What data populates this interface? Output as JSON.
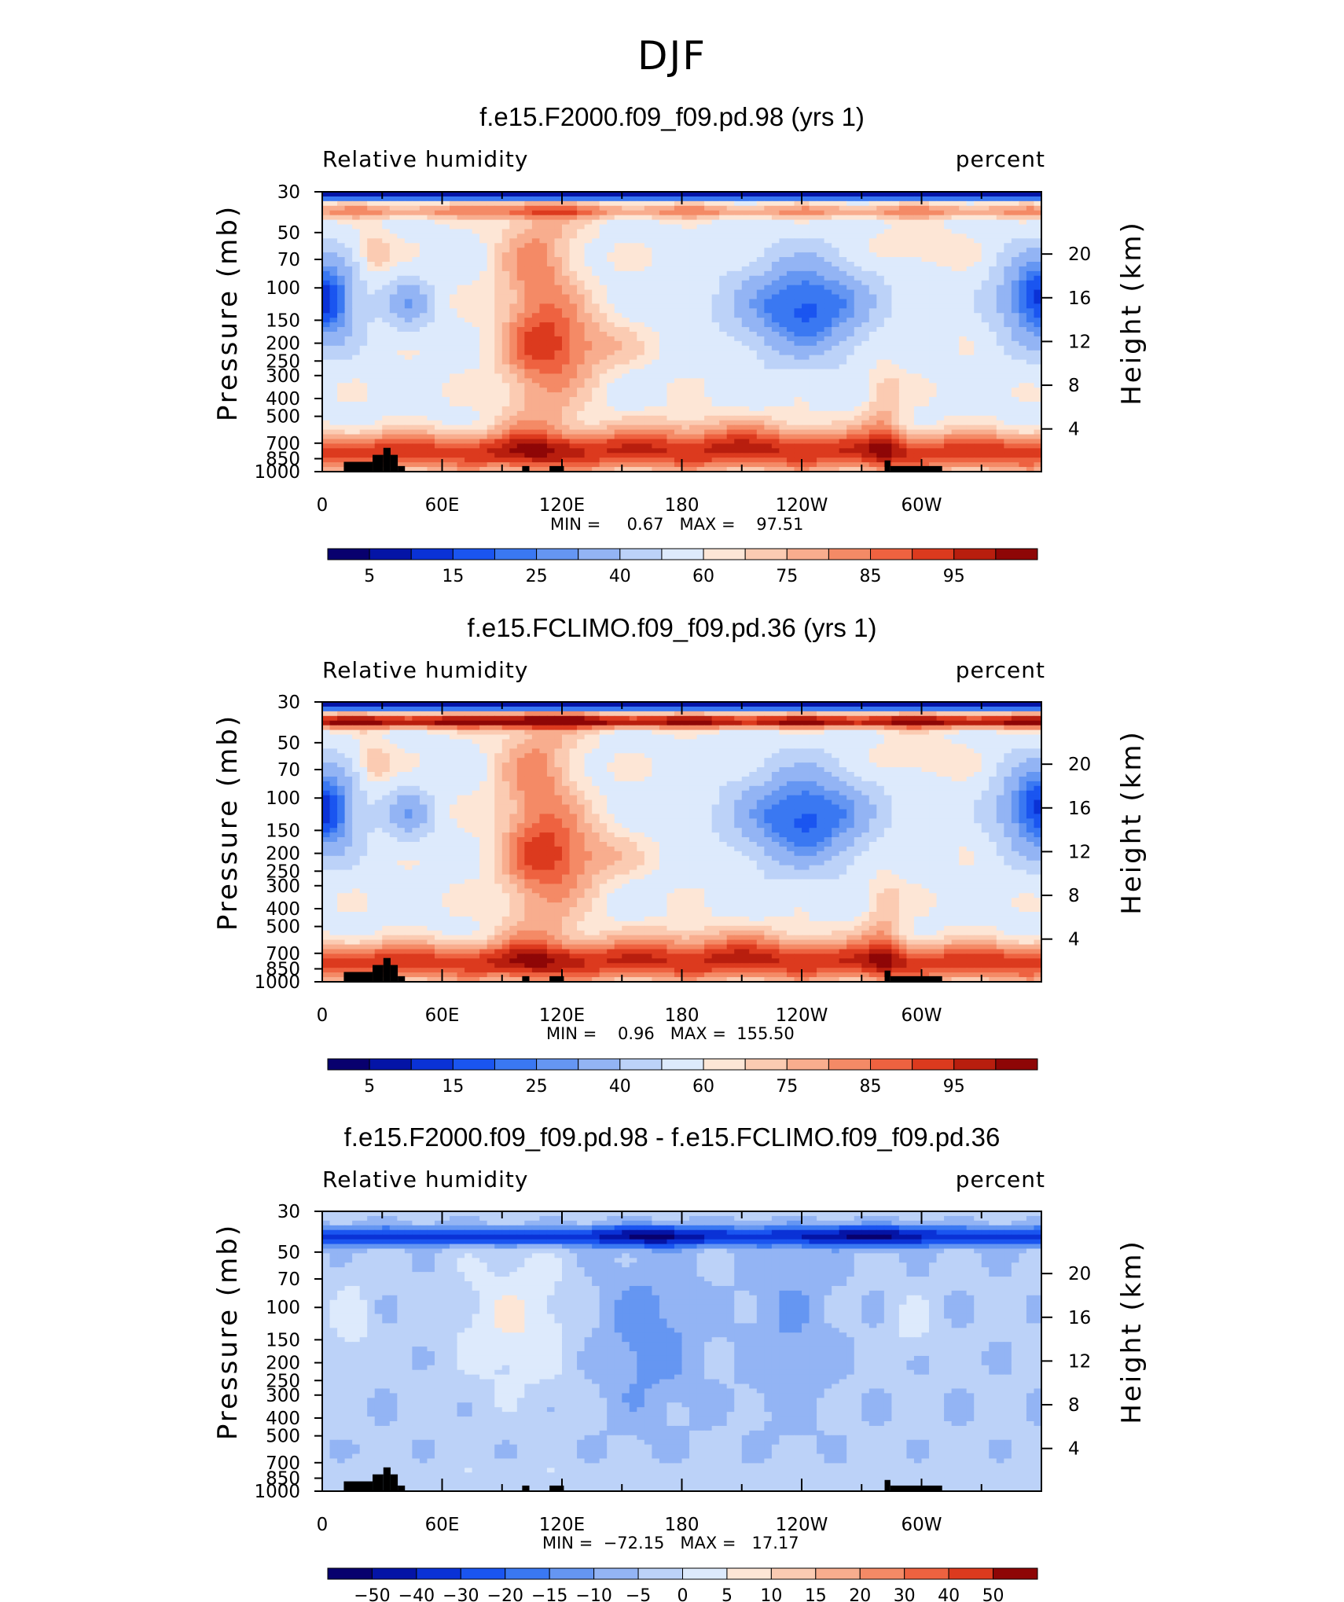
{
  "suptitle": "DJF",
  "colors": {
    "scale": [
      "#08006e",
      "#0414a6",
      "#0a32d6",
      "#1a55f0",
      "#3a78f2",
      "#6596f2",
      "#93b4f4",
      "#bcd2f8",
      "#ddeafc",
      "#fde6d6",
      "#fbcbb2",
      "#f8ad8e",
      "#f48a66",
      "#ee6240",
      "#dc3a1e",
      "#b81e0e",
      "#8e0606"
    ],
    "topo": "#000000"
  },
  "chart_data": [
    {
      "type": "heatmap",
      "title": "f.e15.F2000.f09_f09.pd.98 (yrs 1)",
      "left_label": "Relative humidity",
      "right_label": "percent",
      "ylabel": "Pressure (mb)",
      "ylabel_right": "Height (km)",
      "x_ticks": [
        "0",
        "60E",
        "120E",
        "180",
        "120W",
        "60W"
      ],
      "y_ticks": [
        "30",
        "50",
        "70",
        "100",
        "150",
        "200",
        "250",
        "300",
        "400",
        "500",
        "700",
        "850",
        "1000"
      ],
      "y_right_ticks": [
        "20",
        "16",
        "12",
        "8",
        "4"
      ],
      "stats": "MIN =     0.67   MAX =    97.51",
      "min": 0.67,
      "max": 97.51,
      "colorbar_labels": [
        "5",
        "15",
        "25",
        "40",
        "60",
        "75",
        "85",
        "95"
      ],
      "field": "full"
    },
    {
      "type": "heatmap",
      "title": "f.e15.FCLIMO.f09_f09.pd.36 (yrs 1)",
      "left_label": "Relative humidity",
      "right_label": "percent",
      "ylabel": "Pressure (mb)",
      "ylabel_right": "Height (km)",
      "x_ticks": [
        "0",
        "60E",
        "120E",
        "180",
        "120W",
        "60W"
      ],
      "y_ticks": [
        "30",
        "50",
        "70",
        "100",
        "150",
        "200",
        "250",
        "300",
        "400",
        "500",
        "700",
        "850",
        "1000"
      ],
      "y_right_ticks": [
        "20",
        "16",
        "12",
        "8",
        "4"
      ],
      "stats": "MIN =    0.96   MAX =  155.50",
      "min": 0.96,
      "max": 155.5,
      "colorbar_labels": [
        "5",
        "15",
        "25",
        "40",
        "60",
        "75",
        "85",
        "95"
      ],
      "field": "full"
    },
    {
      "type": "heatmap",
      "title": "f.e15.F2000.f09_f09.pd.98 - f.e15.FCLIMO.f09_f09.pd.36",
      "left_label": "Relative humidity",
      "right_label": "percent",
      "ylabel": "Pressure (mb)",
      "ylabel_right": "Height (km)",
      "x_ticks": [
        "0",
        "60E",
        "120E",
        "180",
        "120W",
        "60W"
      ],
      "y_ticks": [
        "30",
        "50",
        "70",
        "100",
        "150",
        "200",
        "250",
        "300",
        "400",
        "500",
        "700",
        "850",
        "1000"
      ],
      "y_right_ticks": [
        "20",
        "16",
        "12",
        "8",
        "4"
      ],
      "stats": "MIN =  −72.15   MAX =   17.17",
      "min": -72.15,
      "max": 17.17,
      "colorbar_labels": [
        "−50",
        "−40",
        "−30",
        "−20",
        "−15",
        "−10",
        "−5",
        "0",
        "5",
        "10",
        "15",
        "20",
        "30",
        "40",
        "50"
      ],
      "field": "diff"
    }
  ]
}
